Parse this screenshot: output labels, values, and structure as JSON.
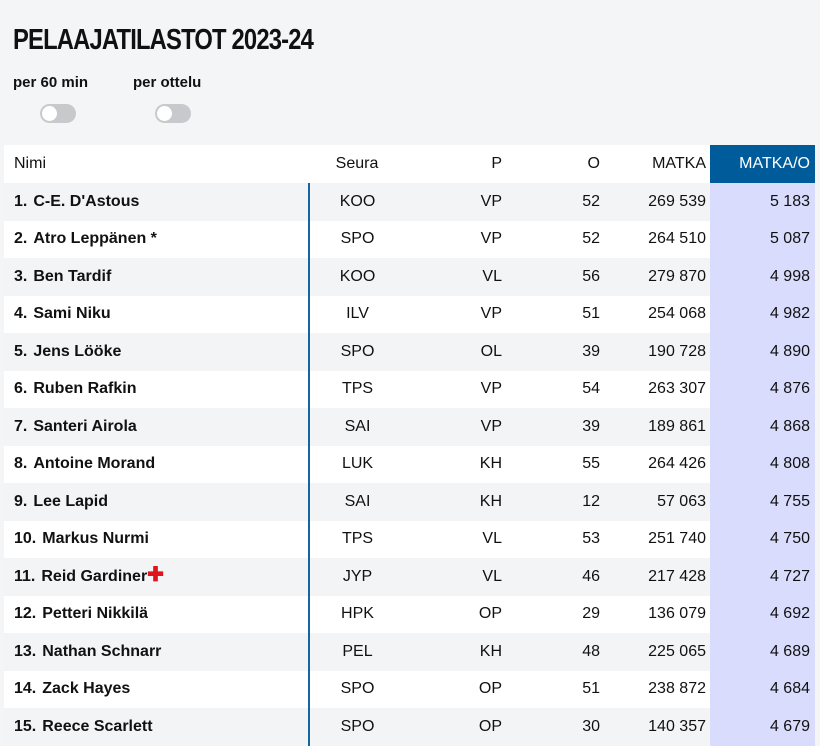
{
  "header": {
    "title": "PELAAJATILASTOT 2023-24"
  },
  "toggles": [
    {
      "label": "per 60 min"
    },
    {
      "label": "per ottelu"
    }
  ],
  "table": {
    "columns": [
      "Nimi",
      "Seura",
      "P",
      "O",
      "MATKA",
      "MATKA/O"
    ],
    "rows": [
      [
        "1.",
        "C-E. D'Astous",
        "KOO",
        "VP",
        "52",
        "269 539",
        "5 183"
      ],
      [
        "2.",
        "Atro Leppänen *",
        "SPO",
        "VP",
        "52",
        "264 510",
        "5 087"
      ],
      [
        "3.",
        "Ben Tardif",
        "KOO",
        "VL",
        "56",
        "279 870",
        "4 998"
      ],
      [
        "4.",
        "Sami Niku",
        "ILV",
        "VP",
        "51",
        "254 068",
        "4 982"
      ],
      [
        "5.",
        "Jens Lööke",
        "SPO",
        "OL",
        "39",
        "190 728",
        "4 890"
      ],
      [
        "6.",
        "Ruben Rafkin",
        "TPS",
        "VP",
        "54",
        "263 307",
        "4 876"
      ],
      [
        "7.",
        "Santeri Airola",
        "SAI",
        "VP",
        "39",
        "189 861",
        "4 868"
      ],
      [
        "8.",
        "Antoine Morand",
        "LUK",
        "KH",
        "55",
        "264 426",
        "4 808"
      ],
      [
        "9.",
        "Lee Lapid",
        "SAI",
        "KH",
        "12",
        "57 063",
        "4 755"
      ],
      [
        "10.",
        "Markus Nurmi",
        "TPS",
        "VL",
        "53",
        "251 740",
        "4 750"
      ],
      [
        "11.",
        "Reid Gardiner",
        "JYP",
        "VL",
        "46",
        "217 428",
        "4 727"
      ],
      [
        "12.",
        "Petteri Nikkilä",
        "HPK",
        "OP",
        "29",
        "136 079",
        "4 692"
      ],
      [
        "13.",
        "Nathan Schnarr",
        "PEL",
        "KH",
        "48",
        "225 065",
        "4 689"
      ],
      [
        "14.",
        "Zack Hayes",
        "SPO",
        "OP",
        "51",
        "238 872",
        "4 684"
      ],
      [
        "15.",
        "Reece Scarlett",
        "SPO",
        "OP",
        "30",
        "140 357",
        "4 679"
      ]
    ]
  }
}
